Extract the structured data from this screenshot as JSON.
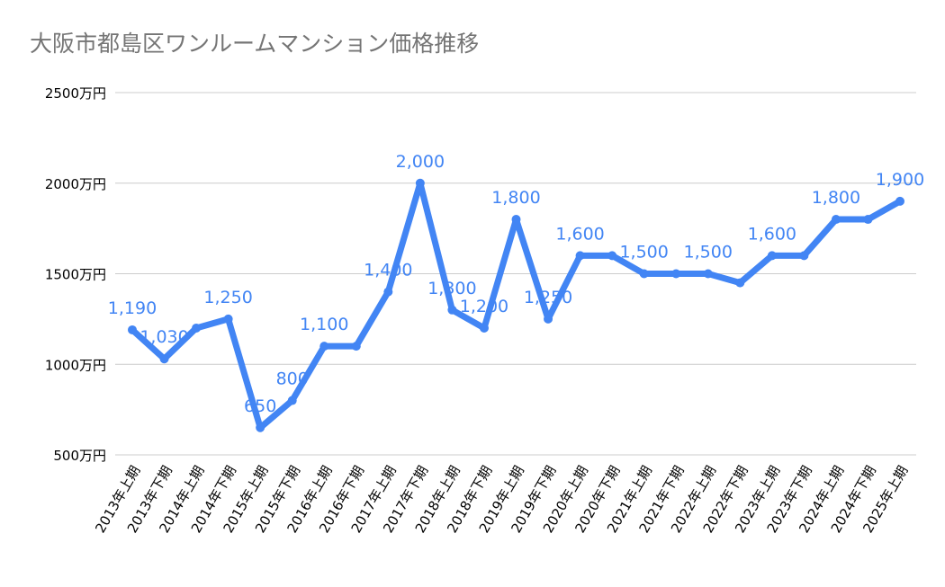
{
  "chart_data": {
    "type": "line",
    "title": "大阪市都島区ワンルームマンション価格推移",
    "xlabel": "",
    "ylabel": "",
    "categories": [
      "2013年上期",
      "2013年下期",
      "2014年上期",
      "2014年下期",
      "2015年上期",
      "2015年下期",
      "2016年上期",
      "2016年下期",
      "2017年上期",
      "2017年下期",
      "2018年上期",
      "2018年下期",
      "2019年上期",
      "2019年下期",
      "2020年上期",
      "2020年下期",
      "2021年上期",
      "2021年下期",
      "2022年上期",
      "2022年下期",
      "2023年上期",
      "2023年下期",
      "2024年上期",
      "2024年下期",
      "2025年上期"
    ],
    "values": [
      1190,
      1030,
      1200,
      1250,
      650,
      800,
      1100,
      1100,
      1400,
      2000,
      1300,
      1200,
      1800,
      1250,
      1600,
      1600,
      1500,
      1500,
      1500,
      1450,
      1600,
      1600,
      1800,
      1800,
      1900
    ],
    "data_labels": [
      "1,190",
      "1,030",
      null,
      "1,250",
      "650",
      "800",
      "1,100",
      null,
      "1,400",
      "2,000",
      "1,300",
      "1,200",
      "1,800",
      "1,250",
      "1,600",
      null,
      "1,500",
      null,
      "1,500",
      null,
      "1,600",
      null,
      "1,800",
      null,
      "1,900"
    ],
    "yticks": [
      500,
      1000,
      1500,
      2000,
      2500
    ],
    "ytick_labels": [
      "500万円",
      "1000万円",
      "1500万円",
      "2000万円",
      "2500万円"
    ],
    "ylim": [
      500,
      2500
    ],
    "grid": true,
    "legend": "none",
    "colors": {
      "line": "#4285f4",
      "label": "#4285f4",
      "title": "#757575",
      "grid": "#cccccc",
      "axis_text": "#000000"
    }
  }
}
